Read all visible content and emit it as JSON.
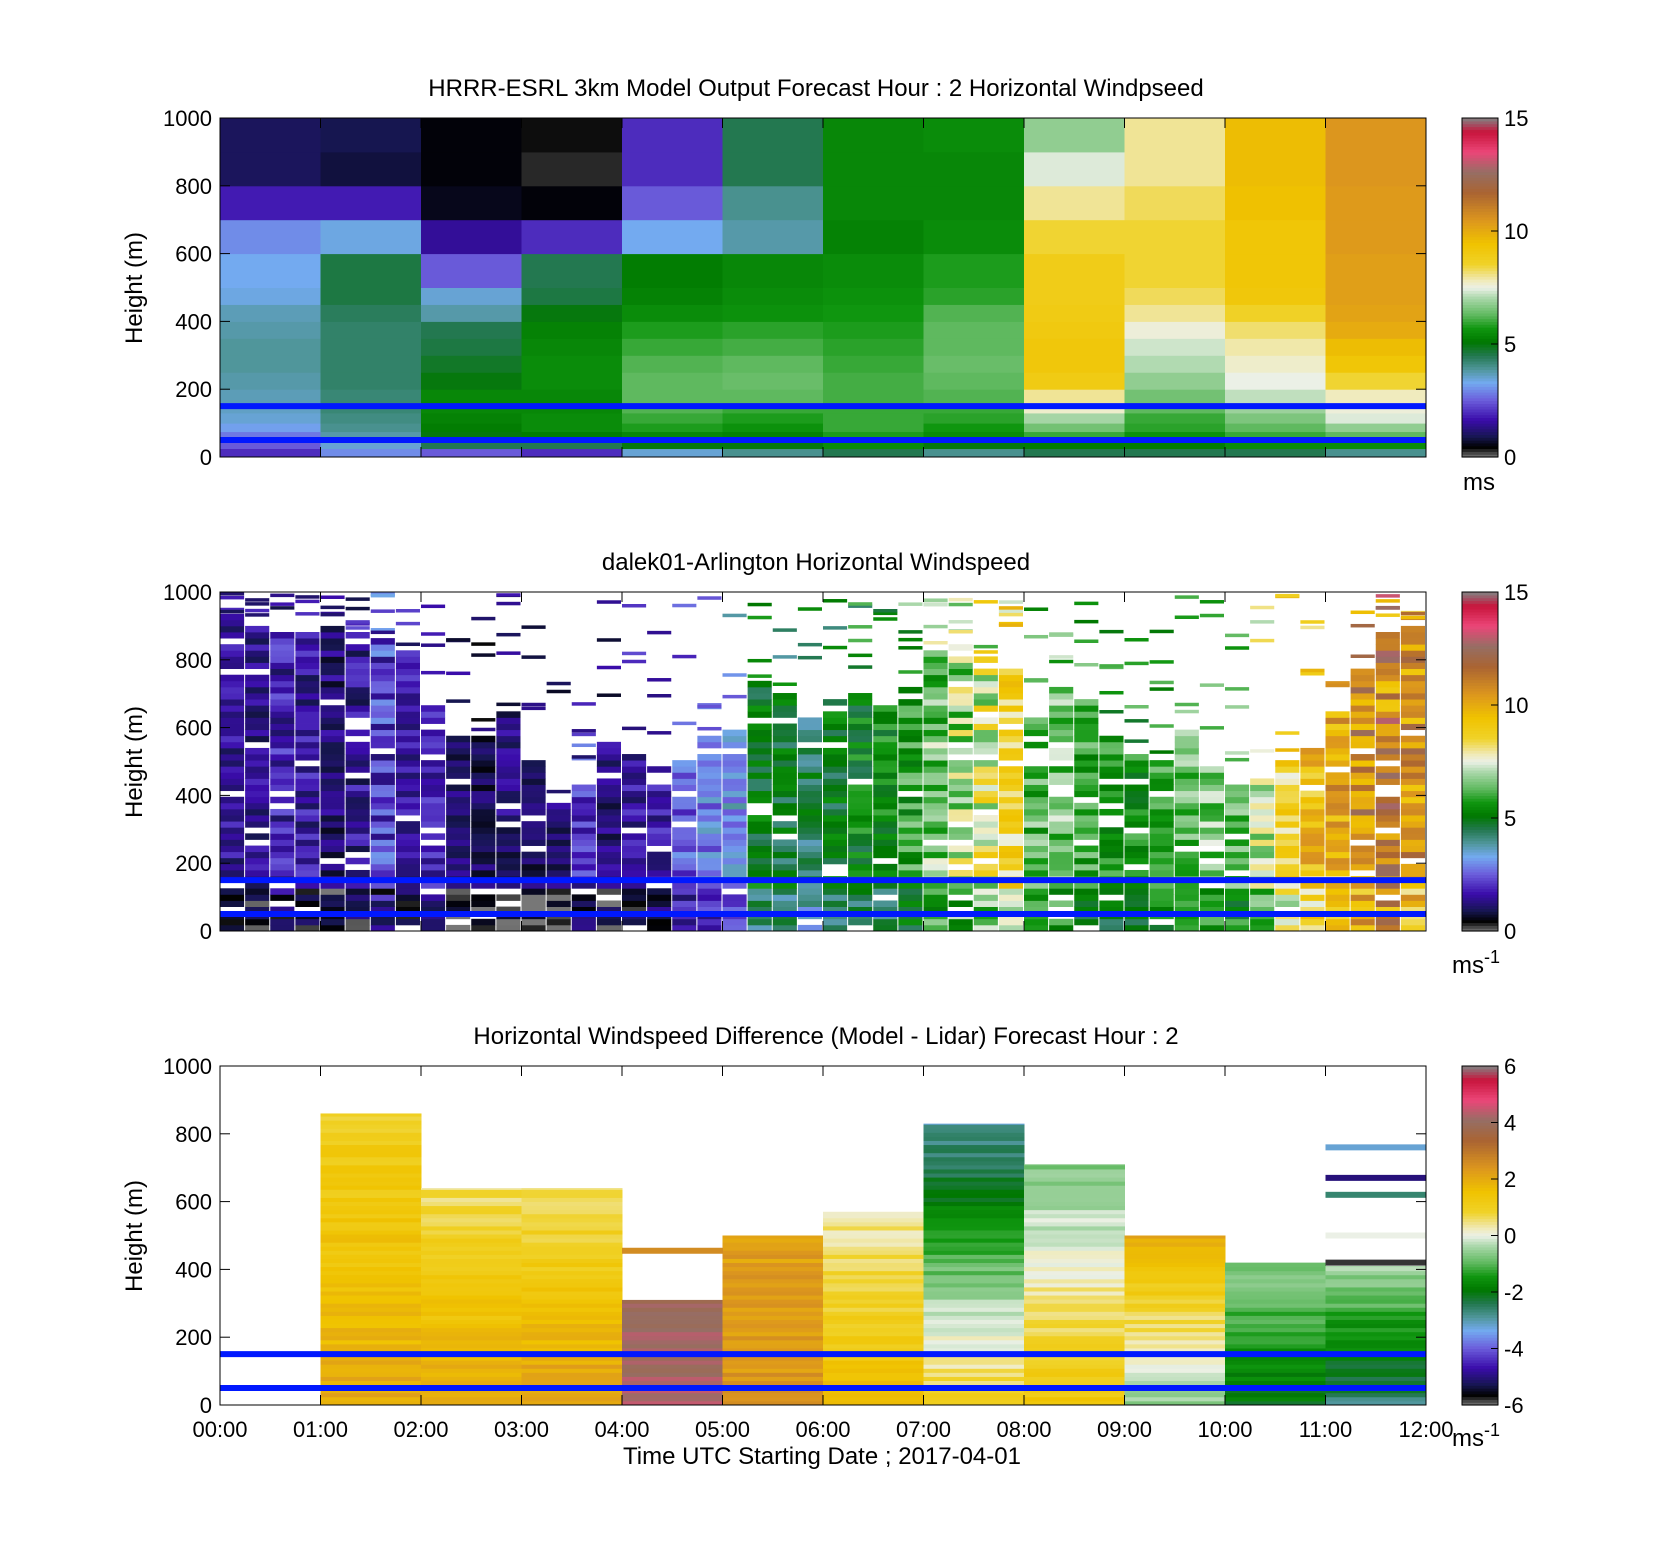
{
  "figure": {
    "xlabel": "Time UTC  Starting Date ; 2017-04-01",
    "x_ticks": [
      "00:00",
      "01:00",
      "02:00",
      "03:00",
      "04:00",
      "05:00",
      "06:00",
      "07:00",
      "08:00",
      "09:00",
      "10:00",
      "11:00",
      "12:00"
    ]
  },
  "chart_data": [
    {
      "type": "heatmap",
      "title": "HRRR-ESRL 3km Model Output   Forecast Hour : 2 Horizontal Windpseed",
      "ylabel": "Height (m)",
      "xlabel": "",
      "ylim": [
        0,
        1000
      ],
      "y_ticks": [
        "0",
        "200",
        "400",
        "600",
        "800",
        "1000"
      ],
      "colorbar": {
        "range": [
          0,
          15
        ],
        "ticks": [
          "0",
          "5",
          "10",
          "15"
        ],
        "unit": "ms"
      },
      "reference_lines_m": [
        150,
        50
      ],
      "hours": [
        0,
        1,
        2,
        3,
        4,
        5,
        6,
        7,
        8,
        9,
        10,
        11
      ],
      "height_levels_m": [
        0,
        25,
        50,
        75,
        100,
        130,
        160,
        200,
        250,
        300,
        350,
        400,
        450,
        500,
        600,
        700,
        800,
        900,
        1000
      ],
      "values_ms": [
        [
          2.0,
          2.5,
          2.8,
          3.2,
          3.5,
          3.6,
          3.7,
          3.8,
          3.9,
          3.9,
          3.8,
          3.7,
          3.4,
          3.3,
          3.0,
          1.8,
          1.0,
          1.0
        ],
        [
          3.0,
          3.5,
          3.8,
          4.0,
          4.1,
          4.2,
          4.2,
          4.3,
          4.3,
          4.3,
          4.3,
          4.4,
          4.6,
          4.6,
          3.4,
          1.8,
          0.8,
          0.9
        ],
        [
          2.5,
          4.5,
          5.0,
          5.2,
          5.3,
          5.4,
          5.4,
          5.0,
          4.8,
          4.6,
          4.5,
          3.8,
          3.5,
          2.5,
          1.5,
          0.6,
          0.5,
          0.5
        ],
        [
          2.0,
          4.5,
          5.2,
          5.5,
          5.5,
          5.4,
          5.4,
          5.5,
          5.5,
          5.4,
          5.3,
          5.0,
          4.6,
          4.5,
          2.0,
          0.5,
          0.3,
          0.4
        ],
        [
          3.5,
          5.0,
          5.4,
          5.8,
          6.0,
          6.2,
          6.3,
          6.3,
          6.2,
          6.0,
          5.8,
          5.5,
          5.3,
          5.2,
          3.3,
          2.5,
          2.0,
          2.0
        ],
        [
          4.0,
          5.0,
          5.3,
          5.6,
          5.8,
          6.0,
          6.3,
          6.4,
          6.3,
          6.1,
          5.9,
          5.6,
          5.5,
          5.4,
          3.8,
          4.0,
          4.5,
          4.5
        ],
        [
          4.5,
          5.5,
          5.8,
          6.0,
          6.0,
          6.0,
          6.1,
          6.1,
          6.0,
          5.9,
          5.8,
          5.7,
          5.6,
          5.5,
          5.3,
          5.4,
          5.4,
          5.4
        ],
        [
          4.0,
          5.0,
          5.5,
          5.7,
          5.9,
          6.0,
          6.2,
          6.3,
          6.4,
          6.3,
          6.3,
          6.2,
          5.9,
          5.8,
          5.5,
          5.4,
          5.4,
          5.5
        ],
        [
          4.5,
          5.2,
          6.0,
          6.5,
          7.0,
          7.7,
          8.0,
          9.0,
          9.2,
          9.2,
          9.1,
          9.0,
          8.9,
          8.9,
          8.5,
          8.0,
          7.4,
          6.8
        ],
        [
          4.5,
          5.2,
          5.6,
          5.9,
          6.0,
          6.3,
          6.5,
          6.8,
          7.1,
          7.3,
          7.6,
          8.0,
          8.3,
          8.5,
          8.5,
          8.3,
          8.0,
          8.0
        ],
        [
          4.5,
          5.5,
          6.0,
          6.3,
          6.6,
          6.9,
          7.2,
          7.5,
          7.7,
          7.9,
          8.2,
          8.6,
          9.2,
          9.3,
          9.3,
          9.5,
          9.6,
          9.6
        ],
        [
          4.0,
          5.5,
          6.3,
          6.8,
          7.4,
          7.6,
          7.8,
          8.5,
          9.3,
          9.6,
          10.0,
          10.2,
          10.3,
          10.3,
          10.4,
          10.4,
          10.5,
          10.5
        ]
      ]
    },
    {
      "type": "heatmap",
      "title": "dalek01-Arlington  Horizontal Windspeed",
      "ylabel": "Height (m)",
      "xlabel": "",
      "ylim": [
        0,
        1000
      ],
      "y_ticks": [
        "0",
        "200",
        "400",
        "600",
        "800",
        "1000"
      ],
      "colorbar": {
        "range": [
          0,
          15
        ],
        "ticks": [
          "0",
          "5",
          "10",
          "15"
        ],
        "unit": "ms",
        "unit_exponent": "-1"
      },
      "reference_lines_m": [
        150,
        50
      ],
      "profile_width_h": 0.24,
      "profile_height_step_m": 18,
      "profiles": [
        {
          "t": 0.12,
          "top": 920,
          "mean": 1.5,
          "amp": 0.6
        },
        {
          "t": 0.37,
          "top": 900,
          "mean": 1.4,
          "amp": 0.6
        },
        {
          "t": 0.62,
          "top": 880,
          "mean": 1.8,
          "amp": 0.8
        },
        {
          "t": 0.87,
          "top": 880,
          "mean": 1.6,
          "amp": 0.7
        },
        {
          "t": 1.12,
          "top": 900,
          "mean": 1.2,
          "amp": 0.6
        },
        {
          "t": 1.37,
          "top": 870,
          "mean": 1.5,
          "amp": 0.7
        },
        {
          "t": 1.62,
          "top": 850,
          "mean": 2.2,
          "amp": 1.0
        },
        {
          "t": 1.87,
          "top": 820,
          "mean": 1.6,
          "amp": 0.7
        },
        {
          "t": 2.12,
          "top": 650,
          "mean": 1.8,
          "amp": 0.6
        },
        {
          "t": 2.37,
          "top": 570,
          "mean": 1.2,
          "amp": 0.5
        },
        {
          "t": 2.62,
          "top": 560,
          "mean": 1.0,
          "amp": 0.5
        },
        {
          "t": 2.87,
          "top": 640,
          "mean": 1.3,
          "amp": 0.6
        },
        {
          "t": 3.12,
          "top": 500,
          "mean": 1.0,
          "amp": 0.5
        },
        {
          "t": 3.37,
          "top": 370,
          "mean": 1.2,
          "amp": 0.5
        },
        {
          "t": 3.62,
          "top": 420,
          "mean": 2.0,
          "amp": 0.8
        },
        {
          "t": 3.87,
          "top": 560,
          "mean": 1.3,
          "amp": 0.6
        },
        {
          "t": 4.12,
          "top": 530,
          "mean": 1.6,
          "amp": 0.6
        },
        {
          "t": 4.37,
          "top": 480,
          "mean": 1.8,
          "amp": 0.7
        },
        {
          "t": 4.62,
          "top": 500,
          "mean": 2.4,
          "amp": 0.8
        },
        {
          "t": 4.87,
          "top": 560,
          "mean": 2.9,
          "amp": 0.8
        },
        {
          "t": 5.12,
          "top": 580,
          "mean": 3.2,
          "amp": 0.8
        },
        {
          "t": 5.37,
          "top": 730,
          "mean": 5.0,
          "amp": 0.8
        },
        {
          "t": 5.62,
          "top": 700,
          "mean": 4.8,
          "amp": 0.9
        },
        {
          "t": 5.87,
          "top": 620,
          "mean": 4.5,
          "amp": 1.0
        },
        {
          "t": 6.12,
          "top": 680,
          "mean": 5.0,
          "amp": 0.9
        },
        {
          "t": 6.37,
          "top": 700,
          "mean": 5.2,
          "amp": 0.9
        },
        {
          "t": 6.62,
          "top": 660,
          "mean": 5.4,
          "amp": 0.8
        },
        {
          "t": 6.87,
          "top": 720,
          "mean": 5.8,
          "amp": 1.0
        },
        {
          "t": 7.12,
          "top": 820,
          "mean": 6.5,
          "amp": 1.2
        },
        {
          "t": 7.37,
          "top": 840,
          "mean": 7.0,
          "amp": 1.4
        },
        {
          "t": 7.62,
          "top": 800,
          "mean": 7.6,
          "amp": 1.6
        },
        {
          "t": 7.87,
          "top": 800,
          "mean": 8.6,
          "amp": 1.2
        },
        {
          "t": 8.12,
          "top": 620,
          "mean": 6.2,
          "amp": 1.0
        },
        {
          "t": 8.37,
          "top": 720,
          "mean": 6.5,
          "amp": 1.0
        },
        {
          "t": 8.62,
          "top": 680,
          "mean": 6.0,
          "amp": 0.9
        },
        {
          "t": 8.87,
          "top": 560,
          "mean": 5.6,
          "amp": 0.8
        },
        {
          "t": 9.12,
          "top": 520,
          "mean": 5.5,
          "amp": 0.8
        },
        {
          "t": 9.37,
          "top": 500,
          "mean": 6.0,
          "amp": 0.8
        },
        {
          "t": 9.62,
          "top": 580,
          "mean": 6.4,
          "amp": 0.9
        },
        {
          "t": 9.87,
          "top": 480,
          "mean": 6.6,
          "amp": 0.9
        },
        {
          "t": 10.12,
          "top": 430,
          "mean": 6.2,
          "amp": 0.9
        },
        {
          "t": 10.37,
          "top": 440,
          "mean": 7.2,
          "amp": 1.1
        },
        {
          "t": 10.62,
          "top": 500,
          "mean": 8.6,
          "amp": 1.2
        },
        {
          "t": 10.87,
          "top": 540,
          "mean": 9.4,
          "amp": 1.2
        },
        {
          "t": 11.12,
          "top": 640,
          "mean": 10.0,
          "amp": 1.4
        },
        {
          "t": 11.37,
          "top": 760,
          "mean": 10.8,
          "amp": 1.8
        },
        {
          "t": 11.62,
          "top": 880,
          "mean": 11.0,
          "amp": 2.0
        },
        {
          "t": 11.87,
          "top": 890,
          "mean": 10.4,
          "amp": 1.8
        }
      ]
    },
    {
      "type": "heatmap",
      "title": "Horizontal Windspeed Difference (Model - Lidar) Forecast Hour : 2",
      "ylabel": "Height (m)",
      "xlabel": "Time UTC  Starting Date ; 2017-04-01",
      "ylim": [
        0,
        1000
      ],
      "y_ticks": [
        "0",
        "200",
        "400",
        "600",
        "800",
        "1000"
      ],
      "colorbar": {
        "range": [
          -6,
          6
        ],
        "ticks": [
          "-6",
          "-4",
          "-2",
          "0",
          "2",
          "4",
          "6"
        ],
        "unit": "ms",
        "unit_exponent": "-1"
      },
      "reference_lines_m": [
        150,
        50
      ],
      "columns": [
        {
          "h": 1,
          "top": 860,
          "base": 2.0,
          "upper": 1.0
        },
        {
          "h": 2,
          "top": 640,
          "base": 2.2,
          "upper": 0.5
        },
        {
          "h": 3,
          "top": 640,
          "base": 2.3,
          "upper": 0.5
        },
        {
          "h": 4,
          "top": 310,
          "base": 4.2,
          "upper": 4.0
        },
        {
          "h": 5,
          "top": 500,
          "base": 2.4,
          "upper": 2.2
        },
        {
          "h": 6,
          "top": 570,
          "base": 1.6,
          "upper": 0.3
        },
        {
          "h": 7,
          "top": 830,
          "base": 1.0,
          "upper": -3.0
        },
        {
          "h": 8,
          "top": 710,
          "base": 1.4,
          "upper": -0.8
        },
        {
          "h": 9,
          "top": 500,
          "base": -0.6,
          "upper": 2.0
        },
        {
          "h": 10,
          "top": 420,
          "base": -2.0,
          "upper": -0.6
        },
        {
          "h": 11,
          "top": 410,
          "base": -2.6,
          "upper": -0.4
        }
      ],
      "isolated_streaks": [
        {
          "h": 4,
          "height_m": 455,
          "value": 2.6
        },
        {
          "h": 11,
          "height_m": 760,
          "value": -3.2
        },
        {
          "h": 11,
          "height_m": 670,
          "value": -5.0
        },
        {
          "h": 11,
          "height_m": 620,
          "value": -2.6
        },
        {
          "h": 11,
          "height_m": 500,
          "value": 0.0
        },
        {
          "h": 11,
          "height_m": 420,
          "value": -5.8
        }
      ]
    }
  ]
}
